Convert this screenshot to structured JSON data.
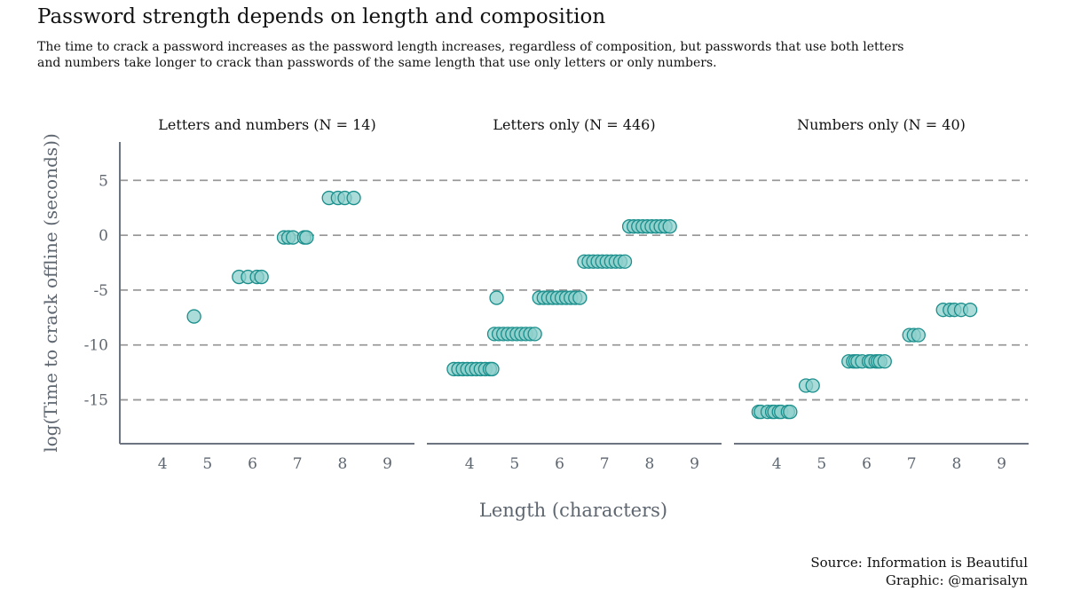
{
  "title": "Password strength depends on length and composition",
  "subtitle": "The time to crack a password increases as the password length increases, regardless of composition, but passwords that use both letters and numbers take longer to crack than passwords of the same length that use only letters or only numbers.",
  "source_line": "Source: Information is Beautiful",
  "graphic_line": "Graphic: @marisalyn",
  "colors": {
    "point_fill": "#8fd0cc",
    "point_stroke": "#1a8f8c",
    "grid": "#9a9a9a",
    "axis": "#6b7480",
    "tick_text": "#5e6670"
  },
  "chart_data": {
    "type": "scatter",
    "xlabel": "Length (characters)",
    "ylabel": "log(Time to crack offline (seconds))",
    "xlim": [
      3.05,
      9.6
    ],
    "ylim": [
      -19,
      8.5
    ],
    "x_ticks": [
      4,
      5,
      6,
      7,
      8,
      9
    ],
    "y_ticks": [
      5,
      0,
      -5,
      -10,
      -15
    ],
    "grid": "horizontal dashed",
    "jitter_note_hidden": "",
    "panels": [
      {
        "label": "Letters and numbers (N = 14)",
        "points": [
          {
            "x": 4.7,
            "y": -7.4
          },
          {
            "x": 5.7,
            "y": -3.8
          },
          {
            "x": 5.9,
            "y": -3.8
          },
          {
            "x": 6.1,
            "y": -3.8
          },
          {
            "x": 6.2,
            "y": -3.8
          },
          {
            "x": 6.7,
            "y": -0.2
          },
          {
            "x": 6.8,
            "y": -0.2
          },
          {
            "x": 6.9,
            "y": -0.2
          },
          {
            "x": 7.15,
            "y": -0.2
          },
          {
            "x": 7.2,
            "y": -0.2
          },
          {
            "x": 7.7,
            "y": 3.4
          },
          {
            "x": 7.9,
            "y": 3.4
          },
          {
            "x": 8.05,
            "y": 3.4
          },
          {
            "x": 8.25,
            "y": 3.4
          }
        ]
      },
      {
        "label": "Letters only (N = 446)",
        "points": [
          {
            "x": 3.65,
            "y": -12.2
          },
          {
            "x": 3.75,
            "y": -12.2
          },
          {
            "x": 3.85,
            "y": -12.2
          },
          {
            "x": 3.95,
            "y": -12.2
          },
          {
            "x": 4.05,
            "y": -12.2
          },
          {
            "x": 4.15,
            "y": -12.2
          },
          {
            "x": 4.25,
            "y": -12.2
          },
          {
            "x": 4.35,
            "y": -12.2
          },
          {
            "x": 4.45,
            "y": -12.2
          },
          {
            "x": 4.5,
            "y": -12.2
          },
          {
            "x": 4.6,
            "y": -5.7
          },
          {
            "x": 4.55,
            "y": -9.0
          },
          {
            "x": 4.65,
            "y": -9.0
          },
          {
            "x": 4.75,
            "y": -9.0
          },
          {
            "x": 4.85,
            "y": -9.0
          },
          {
            "x": 4.95,
            "y": -9.0
          },
          {
            "x": 5.05,
            "y": -9.0
          },
          {
            "x": 5.15,
            "y": -9.0
          },
          {
            "x": 5.25,
            "y": -9.0
          },
          {
            "x": 5.35,
            "y": -9.0
          },
          {
            "x": 5.45,
            "y": -9.0
          },
          {
            "x": 5.55,
            "y": -5.7
          },
          {
            "x": 5.65,
            "y": -5.7
          },
          {
            "x": 5.75,
            "y": -5.7
          },
          {
            "x": 5.85,
            "y": -5.7
          },
          {
            "x": 5.95,
            "y": -5.7
          },
          {
            "x": 6.05,
            "y": -5.7
          },
          {
            "x": 6.15,
            "y": -5.7
          },
          {
            "x": 6.25,
            "y": -5.7
          },
          {
            "x": 6.35,
            "y": -5.7
          },
          {
            "x": 6.45,
            "y": -5.7
          },
          {
            "x": 6.55,
            "y": -2.4
          },
          {
            "x": 6.65,
            "y": -2.4
          },
          {
            "x": 6.75,
            "y": -2.4
          },
          {
            "x": 6.85,
            "y": -2.4
          },
          {
            "x": 6.95,
            "y": -2.4
          },
          {
            "x": 7.05,
            "y": -2.4
          },
          {
            "x": 7.15,
            "y": -2.4
          },
          {
            "x": 7.25,
            "y": -2.4
          },
          {
            "x": 7.35,
            "y": -2.4
          },
          {
            "x": 7.45,
            "y": -2.4
          },
          {
            "x": 7.55,
            "y": 0.8
          },
          {
            "x": 7.65,
            "y": 0.8
          },
          {
            "x": 7.75,
            "y": 0.8
          },
          {
            "x": 7.85,
            "y": 0.8
          },
          {
            "x": 7.95,
            "y": 0.8
          },
          {
            "x": 8.05,
            "y": 0.8
          },
          {
            "x": 8.15,
            "y": 0.8
          },
          {
            "x": 8.25,
            "y": 0.8
          },
          {
            "x": 8.35,
            "y": 0.8
          },
          {
            "x": 8.45,
            "y": 0.8
          }
        ]
      },
      {
        "label": "Numbers only (N = 40)",
        "points": [
          {
            "x": 3.6,
            "y": -16.1
          },
          {
            "x": 3.65,
            "y": -16.1
          },
          {
            "x": 3.8,
            "y": -16.1
          },
          {
            "x": 3.9,
            "y": -16.1
          },
          {
            "x": 3.95,
            "y": -16.1
          },
          {
            "x": 4.05,
            "y": -16.1
          },
          {
            "x": 4.1,
            "y": -16.1
          },
          {
            "x": 4.25,
            "y": -16.1
          },
          {
            "x": 4.3,
            "y": -16.1
          },
          {
            "x": 4.65,
            "y": -13.7
          },
          {
            "x": 4.8,
            "y": -13.7
          },
          {
            "x": 5.6,
            "y": -11.5
          },
          {
            "x": 5.7,
            "y": -11.5
          },
          {
            "x": 5.75,
            "y": -11.5
          },
          {
            "x": 5.8,
            "y": -11.5
          },
          {
            "x": 5.9,
            "y": -11.5
          },
          {
            "x": 6.05,
            "y": -11.5
          },
          {
            "x": 6.1,
            "y": -11.5
          },
          {
            "x": 6.2,
            "y": -11.5
          },
          {
            "x": 6.25,
            "y": -11.5
          },
          {
            "x": 6.3,
            "y": -11.5
          },
          {
            "x": 6.4,
            "y": -11.5
          },
          {
            "x": 6.95,
            "y": -9.1
          },
          {
            "x": 7.05,
            "y": -9.1
          },
          {
            "x": 7.15,
            "y": -9.1
          },
          {
            "x": 7.7,
            "y": -6.8
          },
          {
            "x": 7.85,
            "y": -6.8
          },
          {
            "x": 7.95,
            "y": -6.8
          },
          {
            "x": 8.1,
            "y": -6.8
          },
          {
            "x": 8.3,
            "y": -6.8
          }
        ]
      }
    ]
  }
}
